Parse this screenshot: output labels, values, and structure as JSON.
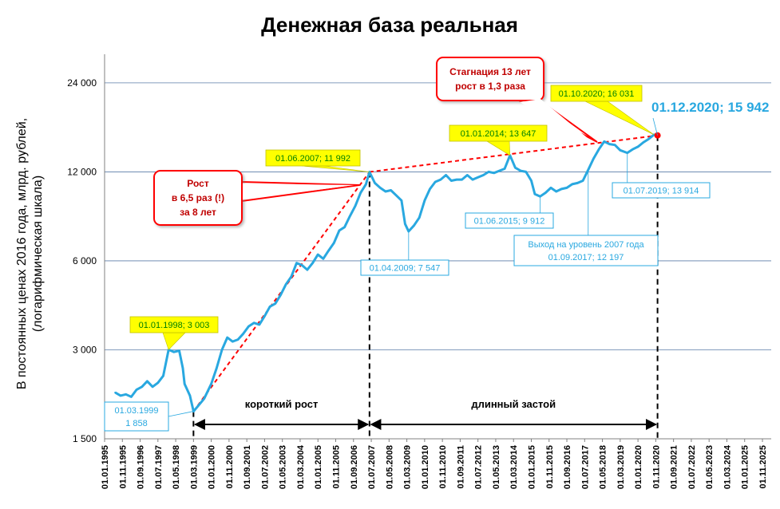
{
  "chart_data": {
    "type": "line",
    "title": "Денежная база реальная",
    "ylabel_lines": [
      "В постоянных ценах 2016 года, млрд. рублей,",
      "(логарифмическая шкала)"
    ],
    "y_scale": "log",
    "ylim": [
      1500,
      30000
    ],
    "y_ticks": [
      {
        "value": 1500,
        "label": "1 500"
      },
      {
        "value": 3000,
        "label": "3 000"
      },
      {
        "value": 6000,
        "label": "6 000"
      },
      {
        "value": 12000,
        "label": "12 000"
      },
      {
        "value": 24000,
        "label": "24 000"
      }
    ],
    "x_start": "1995-01-01",
    "x_end": "2025-11-01",
    "x_tick_labels": [
      "01.01.1995",
      "01.11.1995",
      "01.09.1996",
      "01.07.1997",
      "01.05.1998",
      "01.03.1999",
      "01.01.2000",
      "01.11.2000",
      "01.09.2001",
      "01.07.2002",
      "01.05.2003",
      "01.03.2004",
      "01.01.2005",
      "01.11.2005",
      "01.09.2006",
      "01.07.2007",
      "01.05.2008",
      "01.03.2009",
      "01.01.2010",
      "01.11.2010",
      "01.09.2011",
      "01.07.2012",
      "01.05.2013",
      "01.03.2014",
      "01.01.2015",
      "01.11.2015",
      "01.09.2016",
      "01.07.2017",
      "01.05.2018",
      "01.03.2019",
      "01.01.2020",
      "01.11.2020",
      "01.09.2021",
      "01.07.2022",
      "01.05.2023",
      "01.03.2024",
      "01.01.2025",
      "01.11.2025"
    ],
    "series": [
      {
        "name": "",
        "color": "#29a8e0",
        "points": [
          [
            "1995-07-01",
            2150
          ],
          [
            "1995-10-01",
            2100
          ],
          [
            "1996-01-01",
            2120
          ],
          [
            "1996-04-01",
            2080
          ],
          [
            "1996-07-01",
            2200
          ],
          [
            "1996-10-01",
            2250
          ],
          [
            "1997-01-01",
            2350
          ],
          [
            "1997-04-01",
            2250
          ],
          [
            "1997-07-01",
            2320
          ],
          [
            "1997-10-01",
            2450
          ],
          [
            "1998-01-01",
            3003
          ],
          [
            "1998-04-01",
            2950
          ],
          [
            "1998-07-01",
            2980
          ],
          [
            "1998-09-01",
            2600
          ],
          [
            "1998-10-01",
            2300
          ],
          [
            "1999-01-01",
            2100
          ],
          [
            "1999-03-01",
            1858
          ],
          [
            "1999-06-01",
            1950
          ],
          [
            "1999-09-01",
            2050
          ],
          [
            "2000-01-01",
            2300
          ],
          [
            "2000-04-01",
            2600
          ],
          [
            "2000-07-01",
            3000
          ],
          [
            "2000-10-01",
            3300
          ],
          [
            "2001-01-01",
            3200
          ],
          [
            "2001-04-01",
            3250
          ],
          [
            "2001-07-01",
            3400
          ],
          [
            "2001-10-01",
            3600
          ],
          [
            "2002-01-01",
            3700
          ],
          [
            "2002-04-01",
            3650
          ],
          [
            "2002-07-01",
            3900
          ],
          [
            "2002-10-01",
            4200
          ],
          [
            "2003-01-01",
            4300
          ],
          [
            "2003-04-01",
            4600
          ],
          [
            "2003-07-01",
            5000
          ],
          [
            "2003-10-01",
            5300
          ],
          [
            "2004-01-01",
            5900
          ],
          [
            "2004-04-01",
            5800
          ],
          [
            "2004-07-01",
            5600
          ],
          [
            "2004-10-01",
            5900
          ],
          [
            "2005-01-01",
            6300
          ],
          [
            "2005-04-01",
            6100
          ],
          [
            "2005-07-01",
            6500
          ],
          [
            "2005-10-01",
            6900
          ],
          [
            "2006-01-01",
            7600
          ],
          [
            "2006-04-01",
            7800
          ],
          [
            "2006-07-01",
            8500
          ],
          [
            "2006-10-01",
            9200
          ],
          [
            "2007-01-01",
            10200
          ],
          [
            "2007-04-01",
            10900
          ],
          [
            "2007-06-01",
            11992
          ],
          [
            "2007-09-01",
            11000
          ],
          [
            "2007-12-01",
            10600
          ],
          [
            "2008-03-01",
            10300
          ],
          [
            "2008-06-01",
            10400
          ],
          [
            "2008-09-01",
            10000
          ],
          [
            "2008-12-01",
            9600
          ],
          [
            "2009-02-01",
            8000
          ],
          [
            "2009-04-01",
            7547
          ],
          [
            "2009-07-01",
            7900
          ],
          [
            "2009-10-01",
            8400
          ],
          [
            "2010-01-01",
            9600
          ],
          [
            "2010-04-01",
            10500
          ],
          [
            "2010-07-01",
            11100
          ],
          [
            "2010-10-01",
            11300
          ],
          [
            "2011-01-01",
            11700
          ],
          [
            "2011-04-01",
            11200
          ],
          [
            "2011-07-01",
            11300
          ],
          [
            "2011-10-01",
            11300
          ],
          [
            "2012-01-01",
            11700
          ],
          [
            "2012-04-01",
            11300
          ],
          [
            "2012-07-01",
            11500
          ],
          [
            "2012-10-01",
            11700
          ],
          [
            "2013-01-01",
            12000
          ],
          [
            "2013-04-01",
            11900
          ],
          [
            "2013-07-01",
            12100
          ],
          [
            "2013-10-01",
            12300
          ],
          [
            "2014-01-01",
            13647
          ],
          [
            "2014-04-01",
            12400
          ],
          [
            "2014-07-01",
            12100
          ],
          [
            "2014-10-01",
            12000
          ],
          [
            "2015-01-01",
            11200
          ],
          [
            "2015-03-01",
            10100
          ],
          [
            "2015-06-01",
            9912
          ],
          [
            "2015-09-01",
            10200
          ],
          [
            "2015-12-01",
            10600
          ],
          [
            "2016-03-01",
            10300
          ],
          [
            "2016-06-01",
            10500
          ],
          [
            "2016-09-01",
            10600
          ],
          [
            "2016-12-01",
            10900
          ],
          [
            "2017-03-01",
            11000
          ],
          [
            "2017-06-01",
            11200
          ],
          [
            "2017-09-01",
            12197
          ],
          [
            "2017-12-01",
            13300
          ],
          [
            "2018-03-01",
            14300
          ],
          [
            "2018-06-01",
            15200
          ],
          [
            "2018-09-01",
            14900
          ],
          [
            "2018-12-01",
            14800
          ],
          [
            "2019-03-01",
            14200
          ],
          [
            "2019-07-01",
            13914
          ],
          [
            "2019-10-01",
            14300
          ],
          [
            "2020-01-01",
            14600
          ],
          [
            "2020-04-01",
            15100
          ],
          [
            "2020-07-01",
            15500
          ],
          [
            "2020-10-01",
            16031
          ],
          [
            "2020-12-01",
            15942
          ]
        ]
      }
    ],
    "trend_lines": [
      {
        "name": "rise",
        "points": [
          [
            "1999-03-01",
            1858
          ],
          [
            "2007-06-01",
            11992
          ]
        ],
        "color": "#ff0000",
        "style": "dashed"
      },
      {
        "name": "stagnation",
        "points": [
          [
            "2007-06-01",
            11992
          ],
          [
            "2020-12-01",
            15942
          ]
        ],
        "color": "#ff0000",
        "style": "dashed"
      }
    ],
    "vertical_markers": [
      "1999-03-01",
      "2007-06-01",
      "2020-12-01"
    ],
    "phases": [
      {
        "from": "1999-03-01",
        "to": "2007-06-01",
        "label": "короткий рост"
      },
      {
        "from": "2007-06-01",
        "to": "2020-12-01",
        "label": "длинный застой"
      }
    ],
    "annotations": [
      {
        "id": "a1998",
        "style": "yellow",
        "text": [
          "01.01.1998;  3 003"
        ]
      },
      {
        "id": "a1999",
        "style": "blue",
        "text": [
          "01.03.1999",
          "1 858"
        ]
      },
      {
        "id": "a2007",
        "style": "yellow",
        "text": [
          "01.06.2007;  11 992"
        ]
      },
      {
        "id": "a2009",
        "style": "blue",
        "text": [
          "01.04.2009;  7 547"
        ]
      },
      {
        "id": "a2014",
        "style": "yellow",
        "text": [
          "01.01.2014;  13 647"
        ]
      },
      {
        "id": "a2015",
        "style": "blue",
        "text": [
          "01.06.2015;  9 912"
        ]
      },
      {
        "id": "a2017",
        "style": "blue",
        "text": [
          "Выход на уровень 2007 года",
          "01.09.2017;  12 197"
        ]
      },
      {
        "id": "a2019",
        "style": "blue",
        "text": [
          "01.07.2019;  13 914"
        ]
      },
      {
        "id": "a2020oct",
        "style": "yellow",
        "text": [
          "01.10.2020;  16 031"
        ]
      },
      {
        "id": "a2020dec",
        "style": "blue-big",
        "text": [
          "01.12.2020;  15 942"
        ]
      }
    ],
    "callouts": [
      {
        "id": "rise",
        "text": [
          "Рост",
          "в 6,5 раз (!)",
          "за 8 лет"
        ]
      },
      {
        "id": "stag",
        "text": [
          "Стагнация 13 лет",
          "рост в 1,3 раза"
        ]
      }
    ],
    "grid": true,
    "legend": "none"
  },
  "colors": {
    "line": "#29a8e0",
    "trend": "#ff0000",
    "yellow_fill": "#ffff00",
    "yellow_text": "#008000",
    "blue_text": "#29a8e0",
    "callout_border": "#ff0000"
  }
}
